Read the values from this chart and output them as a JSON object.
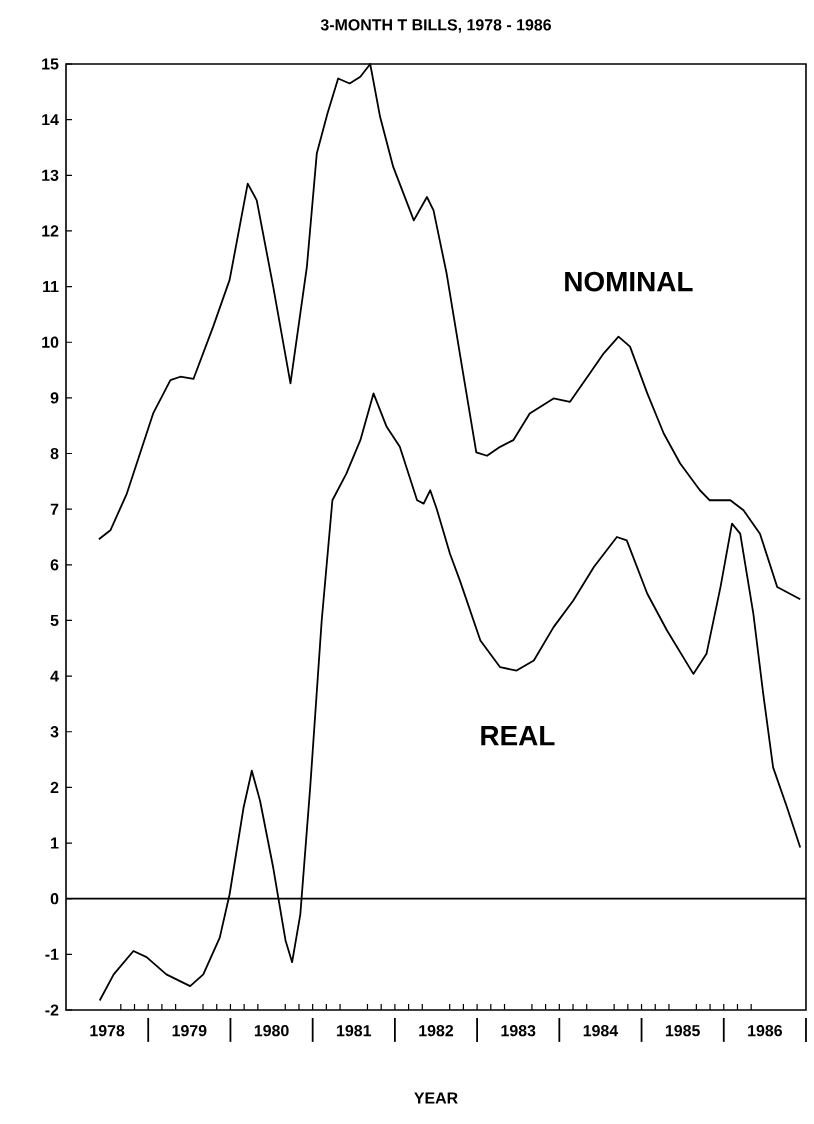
{
  "chart_data": {
    "type": "line",
    "title": "3-MONTH T BILLS, 1978 - 1986",
    "xlabel": "YEAR",
    "xlim": [
      1978,
      1987
    ],
    "ylim": [
      -2,
      15
    ],
    "xticks": [
      {
        "value": 1978.5,
        "label": "1978"
      },
      {
        "value": 1979.5,
        "label": "1979"
      },
      {
        "value": 1980.5,
        "label": "1980"
      },
      {
        "value": 1981.5,
        "label": "1981"
      },
      {
        "value": 1982.5,
        "label": "1982"
      },
      {
        "value": 1983.5,
        "label": "1983"
      },
      {
        "value": 1984.5,
        "label": "1984"
      },
      {
        "value": 1985.5,
        "label": "1985"
      },
      {
        "value": 1986.5,
        "label": "1986"
      },
      {
        "value": 1979,
        "label": null
      },
      {
        "value": 1980,
        "label": null
      },
      {
        "value": 1981,
        "label": null
      },
      {
        "value": 1982,
        "label": null
      },
      {
        "value": 1983,
        "label": null
      },
      {
        "value": 1984,
        "label": null
      },
      {
        "value": 1985,
        "label": null
      },
      {
        "value": 1986,
        "label": null
      },
      {
        "value": 1987,
        "label": null
      }
    ],
    "yticks": [
      -2,
      -1,
      0,
      1,
      2,
      3,
      4,
      5,
      6,
      7,
      8,
      9,
      10,
      11,
      12,
      13,
      14,
      15
    ],
    "grid": false,
    "legend": false,
    "marker": "none",
    "line_style": "solid",
    "ref_lines": [
      {
        "axis": "y",
        "value": 0,
        "color": "#000000"
      }
    ],
    "series": [
      {
        "name": "NOMINAL",
        "color": "#000000",
        "x": [
          1978.4,
          1978.54,
          1978.74,
          1979.06,
          1979.27,
          1979.39,
          1979.55,
          1979.79,
          1979.99,
          1980.21,
          1980.32,
          1980.52,
          1980.73,
          1980.93,
          1981.05,
          1981.18,
          1981.31,
          1981.45,
          1981.58,
          1981.7,
          1981.82,
          1981.98,
          1982.23,
          1982.39,
          1982.47,
          1982.63,
          1982.83,
          1982.99,
          1983.12,
          1983.28,
          1983.44,
          1983.64,
          1983.93,
          1984.13,
          1984.37,
          1984.54,
          1984.72,
          1984.86,
          1985.07,
          1985.27,
          1985.47,
          1985.71,
          1985.83,
          1986.08,
          1986.24,
          1986.44,
          1986.65,
          1986.93
        ],
        "values": [
          6.46,
          6.62,
          7.28,
          8.72,
          9.32,
          9.38,
          9.34,
          10.28,
          11.12,
          12.85,
          12.55,
          11.0,
          9.26,
          11.36,
          13.39,
          14.11,
          14.74,
          14.65,
          14.77,
          15.0,
          14.05,
          13.15,
          12.19,
          12.61,
          12.37,
          11.23,
          9.44,
          8.02,
          7.96,
          8.12,
          8.24,
          8.72,
          8.99,
          8.93,
          9.44,
          9.8,
          10.1,
          9.92,
          9.08,
          8.36,
          7.82,
          7.34,
          7.16,
          7.16,
          6.98,
          6.56,
          5.6,
          5.38
        ]
      },
      {
        "name": "REAL",
        "color": "#000000",
        "x": [
          1978.41,
          1978.58,
          1978.82,
          1978.98,
          1979.22,
          1979.51,
          1979.67,
          1979.87,
          1979.99,
          1980.16,
          1980.26,
          1980.36,
          1980.52,
          1980.67,
          1980.75,
          1980.85,
          1980.97,
          1981.11,
          1981.24,
          1981.41,
          1981.58,
          1981.74,
          1981.9,
          1982.06,
          1982.27,
          1982.35,
          1982.43,
          1982.51,
          1982.67,
          1982.79,
          1983.04,
          1983.28,
          1983.48,
          1983.69,
          1983.93,
          1984.17,
          1984.42,
          1984.7,
          1984.82,
          1985.07,
          1985.31,
          1985.63,
          1985.79,
          1985.96,
          1986.1,
          1986.2,
          1986.36,
          1986.48,
          1986.6,
          1986.77,
          1986.93
        ],
        "values": [
          -1.83,
          -1.36,
          -0.94,
          -1.05,
          -1.36,
          -1.57,
          -1.36,
          -0.7,
          0.08,
          1.64,
          2.3,
          1.76,
          0.56,
          -0.75,
          -1.14,
          -0.28,
          2.0,
          5.0,
          7.16,
          7.64,
          8.24,
          9.08,
          8.48,
          8.12,
          7.16,
          7.1,
          7.34,
          7.0,
          6.2,
          5.72,
          4.64,
          4.16,
          4.1,
          4.28,
          4.88,
          5.36,
          5.96,
          6.5,
          6.44,
          5.48,
          4.82,
          4.04,
          4.4,
          5.6,
          6.74,
          6.56,
          5.12,
          3.68,
          2.36,
          1.64,
          0.92
        ]
      }
    ]
  }
}
